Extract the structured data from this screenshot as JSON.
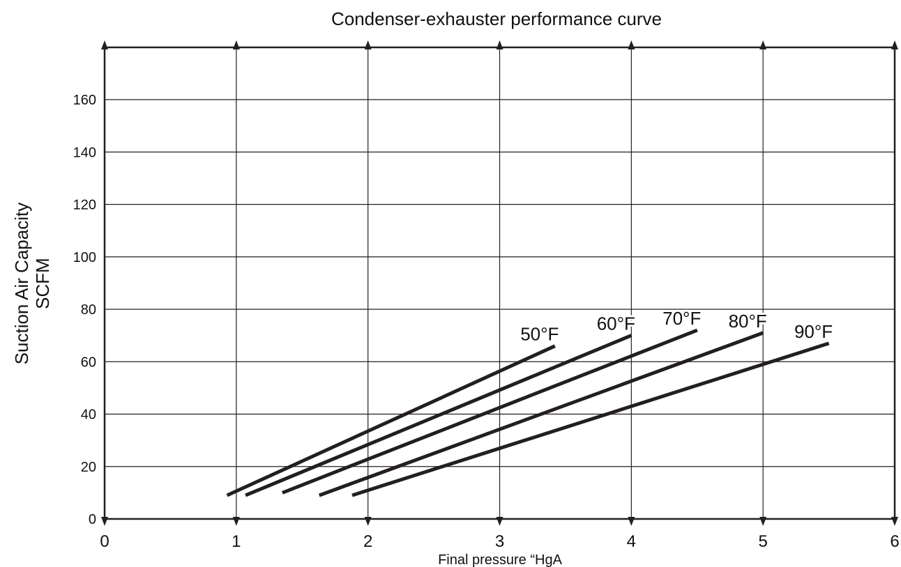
{
  "chart_data": {
    "type": "line",
    "title": "Condenser-exhauster performance curve",
    "xlabel": "Final pressure “HgA",
    "ylabel_lines": [
      "Suction Air Capacity",
      "SCFM"
    ],
    "xlim": [
      0,
      6
    ],
    "ylim": [
      0,
      180
    ],
    "x_ticks": [
      0,
      1,
      2,
      3,
      4,
      5,
      6
    ],
    "y_ticks": [
      0,
      20,
      40,
      60,
      80,
      100,
      120,
      140,
      160
    ],
    "grid": true,
    "legend": "inline labels at line ends",
    "series": [
      {
        "name": "50°F",
        "x": [
          0.93,
          3.42
        ],
        "y": [
          9,
          66
        ]
      },
      {
        "name": "60°F",
        "x": [
          1.07,
          4.0
        ],
        "y": [
          9,
          70
        ]
      },
      {
        "name": "70°F",
        "x": [
          1.35,
          4.5
        ],
        "y": [
          10,
          72
        ]
      },
      {
        "name": "80°F",
        "x": [
          1.63,
          5.0
        ],
        "y": [
          9,
          71
        ]
      },
      {
        "name": "90°F",
        "x": [
          1.88,
          5.5
        ],
        "y": [
          9,
          67
        ]
      }
    ]
  },
  "colors": {
    "line": "#231f20",
    "grid": "#231f20",
    "text": "#111111"
  }
}
